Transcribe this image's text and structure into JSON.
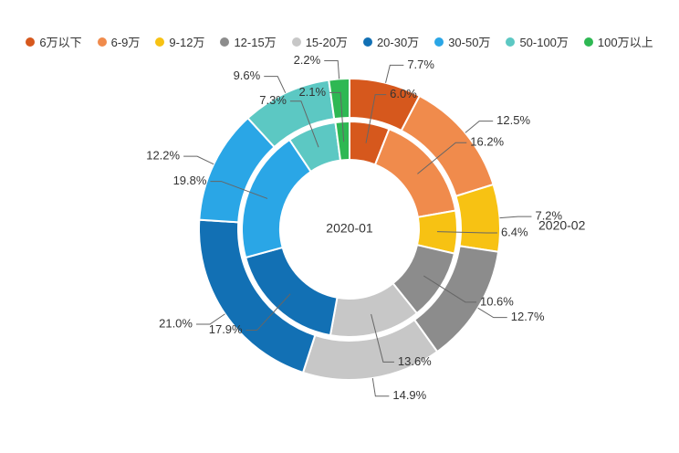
{
  "chart_data": {
    "type": "pie",
    "subtype": "nested-donut",
    "categories": [
      "6万以下",
      "6-9万",
      "9-12万",
      "12-15万",
      "15-20万",
      "20-30万",
      "30-50万",
      "50-100万",
      "100万以上"
    ],
    "colors": [
      "#d6581d",
      "#f08b4c",
      "#f7c213",
      "#8c8c8c",
      "#c7c7c7",
      "#1270b4",
      "#2aa6e6",
      "#5cc8c3",
      "#2eb853"
    ],
    "series": [
      {
        "name": "2020-01",
        "ring": "inner",
        "values": [
          6.0,
          16.2,
          6.4,
          10.6,
          13.6,
          17.9,
          19.8,
          7.3,
          2.1
        ]
      },
      {
        "name": "2020-02",
        "ring": "outer",
        "values": [
          7.7,
          12.5,
          7.2,
          12.7,
          14.9,
          21.0,
          12.2,
          9.6,
          2.2
        ]
      }
    ],
    "center_label": "2020-01",
    "outer_series_label": "2020-02",
    "label_suffix": "%",
    "legend_position": "top",
    "background": "#ffffff",
    "label_color": "#333333"
  }
}
